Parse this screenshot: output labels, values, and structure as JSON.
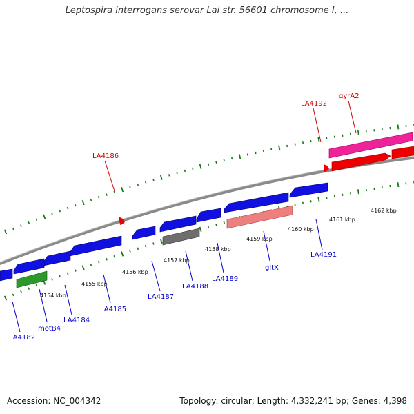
{
  "title": "Leptospira interrogans serovar Lai str. 56601 chromosome I, ...",
  "footer": {
    "accession": "Accession: NC_004342",
    "stats": "Topology: circular; Length: 4,332,241 bp; Genes: 4,398"
  },
  "colors": {
    "backbone": "#888888",
    "tick": "#1a7a1a",
    "label_blue": "#0000cc",
    "label_red": "#cc0000",
    "gene_blue": "#1010e0",
    "gene_green": "#2a9a2a",
    "gene_grey": "#6e6e6e",
    "gene_pink": "#ee7f7f",
    "gene_red": "#ee0000",
    "gene_magenta": "#ee2299"
  },
  "ruler_labels": [
    "4154 kbp",
    "4155 kbp",
    "4156 kbp",
    "4157 kbp",
    "4158 kbp",
    "4159 kbp",
    "4160 kbp",
    "4161 kbp",
    "4162 kbp"
  ],
  "gene_labels": [
    "LA4182",
    "motB4",
    "LA4184",
    "LA4185",
    "LA4187",
    "LA4188",
    "LA4189",
    "gltX",
    "LA4191",
    "LA4186",
    "LA4192",
    "gyrA2"
  ]
}
